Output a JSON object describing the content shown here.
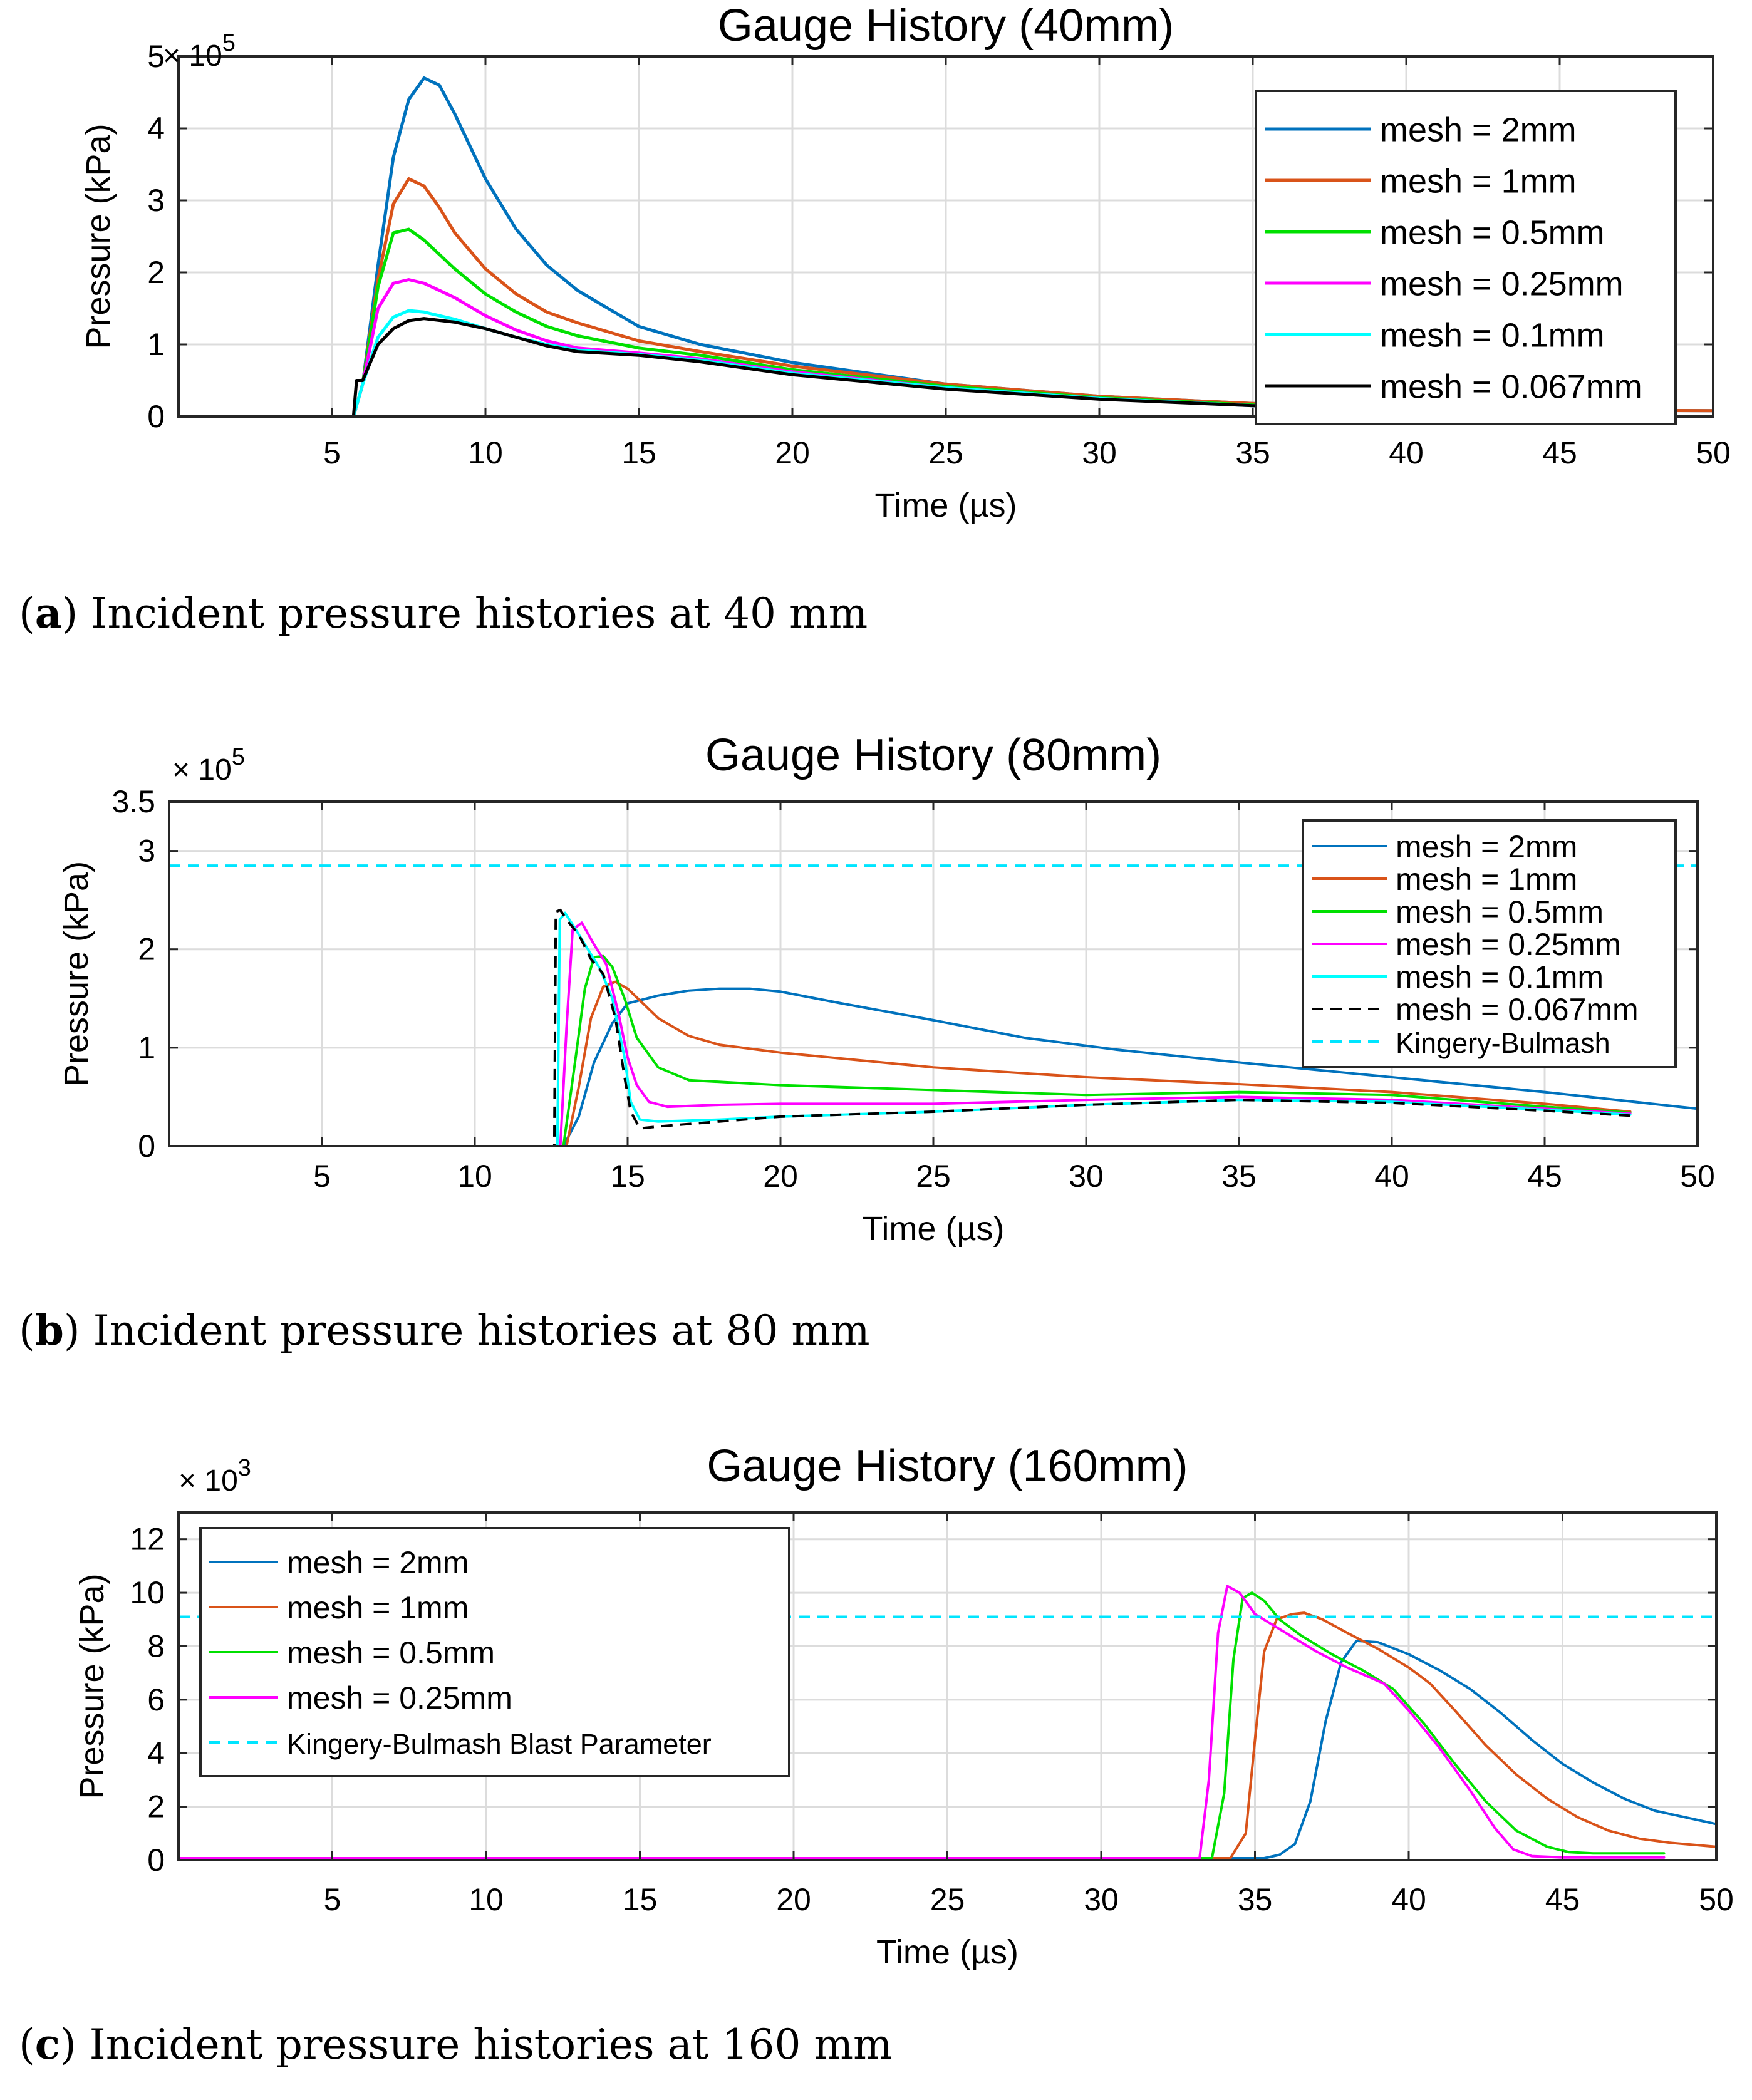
{
  "colors": {
    "mesh_2mm": "#0072BD",
    "mesh_1mm": "#D95319",
    "mesh_0_5mm": "#00E000",
    "mesh_0_25mm": "#FF00FF",
    "mesh_0_1mm": "#00FFFF",
    "mesh_0_067mm": "#000000",
    "kingery_bulmash": "#00E5FF",
    "grid": "#DCDCDC"
  },
  "captions": [
    {
      "label": "a",
      "text": ") Incident pressure histories at 40 mm"
    },
    {
      "label": "b",
      "text": ") Incident pressure histories at 80 mm"
    },
    {
      "label": "c",
      "text": ") Incident pressure histories at 160 mm"
    }
  ],
  "chart_data": [
    {
      "type": "line",
      "title": "Gauge History (40mm)",
      "xlabel": "Time (µs)",
      "ylabel": "Pressure (kPa)",
      "multiplier": "× 10",
      "multiplier_exp": "5",
      "xlim": [
        0,
        50
      ],
      "ylim": [
        0,
        5
      ],
      "xticks": [
        5,
        10,
        15,
        20,
        25,
        30,
        35,
        40,
        45,
        50
      ],
      "yticks": [
        0,
        1,
        2,
        3,
        4,
        5
      ],
      "grid": true,
      "legend_position": "top-right",
      "series": [
        {
          "name": "mesh = 2mm",
          "color_key": "mesh_2mm",
          "dash": false,
          "width": 5,
          "x": [
            0,
            5.7,
            6.0,
            6.5,
            7.0,
            7.5,
            8.0,
            8.5,
            9.0,
            10,
            11,
            12,
            13,
            15,
            17,
            20,
            25,
            30,
            35,
            40,
            45,
            50
          ],
          "y": [
            0,
            0,
            0.45,
            2.1,
            3.6,
            4.4,
            4.7,
            4.6,
            4.2,
            3.3,
            2.6,
            2.1,
            1.75,
            1.25,
            1.0,
            0.75,
            0.45,
            0.28,
            0.18,
            0.12,
            0.09,
            0.08
          ]
        },
        {
          "name": "mesh = 1mm",
          "color_key": "mesh_1mm",
          "dash": false,
          "width": 5,
          "x": [
            0,
            5.7,
            6.0,
            6.5,
            7.0,
            7.5,
            8.0,
            8.5,
            9,
            10,
            11,
            12,
            13,
            15,
            17,
            20,
            25,
            30,
            35,
            40,
            45,
            50
          ],
          "y": [
            0,
            0,
            0.45,
            1.9,
            2.95,
            3.3,
            3.2,
            2.9,
            2.55,
            2.05,
            1.7,
            1.45,
            1.3,
            1.05,
            0.9,
            0.7,
            0.45,
            0.28,
            0.18,
            0.12,
            0.09,
            0.08
          ]
        },
        {
          "name": "mesh = 0.5mm",
          "color_key": "mesh_0_5mm",
          "dash": false,
          "width": 5,
          "x": [
            0,
            5.7,
            6.0,
            6.5,
            7.0,
            7.5,
            8.0,
            9,
            10,
            11,
            12,
            13,
            15,
            17,
            20,
            25,
            30,
            35,
            40,
            45,
            48
          ],
          "y": [
            0,
            0,
            0.45,
            1.8,
            2.55,
            2.6,
            2.45,
            2.05,
            1.7,
            1.45,
            1.25,
            1.12,
            0.95,
            0.85,
            0.65,
            0.42,
            0.26,
            0.16,
            0.11,
            0.08,
            0.07
          ]
        },
        {
          "name": "mesh = 0.25mm",
          "color_key": "mesh_0_25mm",
          "dash": false,
          "width": 5,
          "x": [
            0,
            5.7,
            6.0,
            6.5,
            7.0,
            7.5,
            8.0,
            9,
            10,
            11,
            12,
            13,
            15,
            17,
            20,
            25,
            30,
            35,
            40,
            45,
            48
          ],
          "y": [
            0,
            0,
            0.45,
            1.5,
            1.85,
            1.9,
            1.85,
            1.65,
            1.4,
            1.2,
            1.05,
            0.95,
            0.88,
            0.8,
            0.62,
            0.4,
            0.25,
            0.15,
            0.1,
            0.08,
            0.07
          ]
        },
        {
          "name": "mesh = 0.1mm",
          "color_key": "mesh_0_1mm",
          "dash": false,
          "width": 5,
          "x": [
            0,
            5.7,
            6.0,
            6.5,
            7.0,
            7.5,
            8.0,
            9,
            10,
            11,
            12,
            13,
            15,
            17,
            20,
            25,
            30,
            35,
            40,
            45,
            48
          ],
          "y": [
            0,
            0,
            0.45,
            1.1,
            1.38,
            1.47,
            1.45,
            1.35,
            1.22,
            1.1,
            1.0,
            0.92,
            0.86,
            0.78,
            0.6,
            0.4,
            0.25,
            0.15,
            0.1,
            0.08,
            0.07
          ]
        },
        {
          "name": "mesh = 0.067mm",
          "color_key": "mesh_0_067mm",
          "dash": false,
          "width": 5,
          "x": [
            0,
            5.7,
            5.8,
            6.0,
            6.2,
            6.5,
            7.0,
            7.5,
            8.0,
            9,
            10,
            11,
            12,
            13,
            15,
            17,
            20,
            25,
            30,
            35,
            40,
            45,
            48
          ],
          "y": [
            0,
            0,
            0.5,
            0.5,
            0.7,
            1.0,
            1.22,
            1.33,
            1.36,
            1.31,
            1.22,
            1.1,
            0.98,
            0.9,
            0.85,
            0.76,
            0.58,
            0.38,
            0.24,
            0.15,
            0.1,
            0.08,
            0.07
          ]
        }
      ]
    },
    {
      "type": "line",
      "title": "Gauge History (80mm)",
      "xlabel": "Time (µs)",
      "ylabel": "Pressure (kPa)",
      "multiplier": "× 10",
      "multiplier_exp": "5",
      "xlim": [
        0,
        50
      ],
      "ylim": [
        0,
        3.5
      ],
      "xticks": [
        5,
        10,
        15,
        20,
        25,
        30,
        35,
        40,
        45,
        50
      ],
      "yticks": [
        0,
        1,
        2,
        3,
        3.5
      ],
      "grid": true,
      "legend_position": "top-right",
      "series": [
        {
          "name": "mesh = 2mm",
          "color_key": "mesh_2mm",
          "dash": false,
          "width": 4,
          "x": [
            0,
            12.9,
            13.4,
            13.9,
            14.5,
            15.0,
            16,
            17,
            18,
            19,
            20,
            22,
            25,
            28,
            31,
            35,
            40,
            45,
            50
          ],
          "y": [
            0,
            0,
            0.3,
            0.85,
            1.25,
            1.45,
            1.53,
            1.58,
            1.6,
            1.6,
            1.57,
            1.45,
            1.28,
            1.1,
            0.98,
            0.85,
            0.7,
            0.55,
            0.38
          ]
        },
        {
          "name": "mesh = 1mm",
          "color_key": "mesh_1mm",
          "dash": false,
          "width": 4,
          "x": [
            0,
            13.0,
            13.4,
            13.8,
            14.2,
            14.6,
            15.0,
            15.5,
            16,
            17,
            18,
            20,
            25,
            30,
            35,
            40,
            45,
            47.8
          ],
          "y": [
            0,
            0,
            0.6,
            1.3,
            1.62,
            1.67,
            1.6,
            1.45,
            1.3,
            1.12,
            1.03,
            0.95,
            0.8,
            0.7,
            0.63,
            0.55,
            0.43,
            0.35
          ]
        },
        {
          "name": "mesh = 0.5mm",
          "color_key": "mesh_0_5mm",
          "dash": false,
          "width": 4,
          "x": [
            0,
            12.9,
            13.3,
            13.6,
            13.9,
            14.2,
            14.5,
            14.9,
            15.3,
            16,
            17,
            20,
            25,
            30,
            35,
            40,
            45,
            47.8
          ],
          "y": [
            0,
            0,
            0.9,
            1.6,
            1.92,
            1.93,
            1.82,
            1.5,
            1.1,
            0.8,
            0.67,
            0.62,
            0.57,
            0.52,
            0.55,
            0.52,
            0.4,
            0.34
          ]
        },
        {
          "name": "mesh = 0.25mm",
          "color_key": "mesh_0_25mm",
          "dash": false,
          "width": 4,
          "x": [
            0,
            12.8,
            13.0,
            13.2,
            13.5,
            13.9,
            14.3,
            14.7,
            15.0,
            15.3,
            15.7,
            16.3,
            18,
            20,
            25,
            30,
            35,
            40,
            45,
            47.8
          ],
          "y": [
            0,
            0,
            1.2,
            2.2,
            2.27,
            2.05,
            1.85,
            1.35,
            0.9,
            0.62,
            0.45,
            0.4,
            0.42,
            0.43,
            0.43,
            0.47,
            0.5,
            0.47,
            0.38,
            0.33
          ]
        },
        {
          "name": "mesh = 0.1mm",
          "color_key": "mesh_0_1mm",
          "dash": false,
          "width": 4,
          "x": [
            0,
            12.7,
            12.78,
            12.95,
            13.2,
            13.6,
            14.1,
            14.5,
            14.9,
            15.1,
            15.4,
            16,
            18,
            20,
            25,
            30,
            35,
            40,
            45,
            47.8
          ],
          "y": [
            0,
            0,
            2.3,
            2.37,
            2.25,
            2.05,
            1.8,
            1.5,
            0.9,
            0.45,
            0.27,
            0.25,
            0.27,
            0.3,
            0.35,
            0.42,
            0.47,
            0.45,
            0.37,
            0.32
          ]
        },
        {
          "name": "mesh = 0.067mm",
          "color_key": "mesh_0_067mm",
          "dash": true,
          "width": 4,
          "x": [
            0,
            12.6,
            12.65,
            12.8,
            13.0,
            13.4,
            13.8,
            14.2,
            14.6,
            14.9,
            15.1,
            15.4,
            16,
            18,
            20,
            25,
            30,
            35,
            40,
            45,
            47.8
          ],
          "y": [
            0,
            0,
            2.38,
            2.4,
            2.3,
            2.15,
            1.9,
            1.75,
            1.3,
            0.7,
            0.35,
            0.18,
            0.2,
            0.25,
            0.3,
            0.35,
            0.42,
            0.47,
            0.44,
            0.36,
            0.31
          ]
        },
        {
          "name": "Kingery-Bulmash",
          "color_key": "kingery_bulmash",
          "dash": true,
          "width": 4,
          "x": [
            0,
            50
          ],
          "y": [
            2.85,
            2.85
          ]
        }
      ]
    },
    {
      "type": "line",
      "title": "Gauge History (160mm)",
      "xlabel": "Time (µs)",
      "ylabel": "Pressure (kPa)",
      "multiplier": "× 10",
      "multiplier_exp": "3",
      "xlim": [
        0,
        50
      ],
      "ylim": [
        0,
        13
      ],
      "xticks": [
        5,
        10,
        15,
        20,
        25,
        30,
        35,
        40,
        45,
        50
      ],
      "yticks": [
        0,
        2,
        4,
        6,
        8,
        10,
        12
      ],
      "grid": true,
      "legend_position": "top-left",
      "series": [
        {
          "name": "mesh = 2mm",
          "color_key": "mesh_2mm",
          "dash": false,
          "width": 4,
          "x": [
            0,
            35.3,
            35.8,
            36.3,
            36.8,
            37.3,
            37.8,
            38.3,
            39,
            40,
            41,
            42,
            43,
            44,
            45,
            46,
            47,
            48,
            49,
            50
          ],
          "y": [
            0.07,
            0.07,
            0.2,
            0.6,
            2.2,
            5.2,
            7.4,
            8.2,
            8.15,
            7.7,
            7.1,
            6.4,
            5.5,
            4.5,
            3.6,
            2.9,
            2.3,
            1.85,
            1.6,
            1.35
          ]
        },
        {
          "name": "mesh = 1mm",
          "color_key": "mesh_1mm",
          "dash": false,
          "width": 4,
          "x": [
            0,
            34.2,
            34.7,
            35.0,
            35.3,
            35.7,
            36.2,
            36.6,
            37.2,
            38,
            39,
            40,
            40.7,
            41.5,
            42.5,
            43.5,
            44.5,
            45.5,
            46.5,
            47.5,
            48.5,
            50
          ],
          "y": [
            0.07,
            0.07,
            1.0,
            4.5,
            7.8,
            9.0,
            9.2,
            9.25,
            9.0,
            8.5,
            7.9,
            7.2,
            6.6,
            5.6,
            4.3,
            3.2,
            2.3,
            1.6,
            1.1,
            0.8,
            0.65,
            0.5
          ]
        },
        {
          "name": "mesh = 0.5mm",
          "color_key": "mesh_0_5mm",
          "dash": false,
          "width": 4,
          "x": [
            0,
            33.6,
            34.0,
            34.3,
            34.6,
            34.9,
            35.3,
            35.8,
            36.5,
            37.5,
            38.5,
            39.5,
            40.5,
            41.5,
            42.5,
            43.5,
            44.5,
            45.2,
            46,
            47,
            48.3
          ],
          "y": [
            0.07,
            0.07,
            2.5,
            7.5,
            9.8,
            10.0,
            9.7,
            9.0,
            8.4,
            7.7,
            7.1,
            6.4,
            5.1,
            3.6,
            2.2,
            1.1,
            0.5,
            0.3,
            0.25,
            0.25,
            0.25
          ]
        },
        {
          "name": "mesh = 0.25mm",
          "color_key": "mesh_0_25mm",
          "dash": false,
          "width": 4,
          "x": [
            0,
            33.2,
            33.5,
            33.8,
            34.1,
            34.5,
            35.0,
            36,
            37,
            38,
            39.2,
            40,
            41,
            42,
            42.8,
            43.4,
            44,
            45,
            46,
            47,
            48.3
          ],
          "y": [
            0.07,
            0.07,
            3.0,
            8.5,
            10.25,
            10.0,
            9.2,
            8.5,
            7.8,
            7.2,
            6.6,
            5.6,
            4.2,
            2.6,
            1.2,
            0.4,
            0.15,
            0.1,
            0.1,
            0.1,
            0.1
          ]
        },
        {
          "name": "Kingery-Bulmash Blast Parameter",
          "color_key": "kingery_bulmash",
          "dash": true,
          "width": 4,
          "x": [
            0,
            50
          ],
          "y": [
            9.1,
            9.1
          ]
        }
      ]
    }
  ]
}
